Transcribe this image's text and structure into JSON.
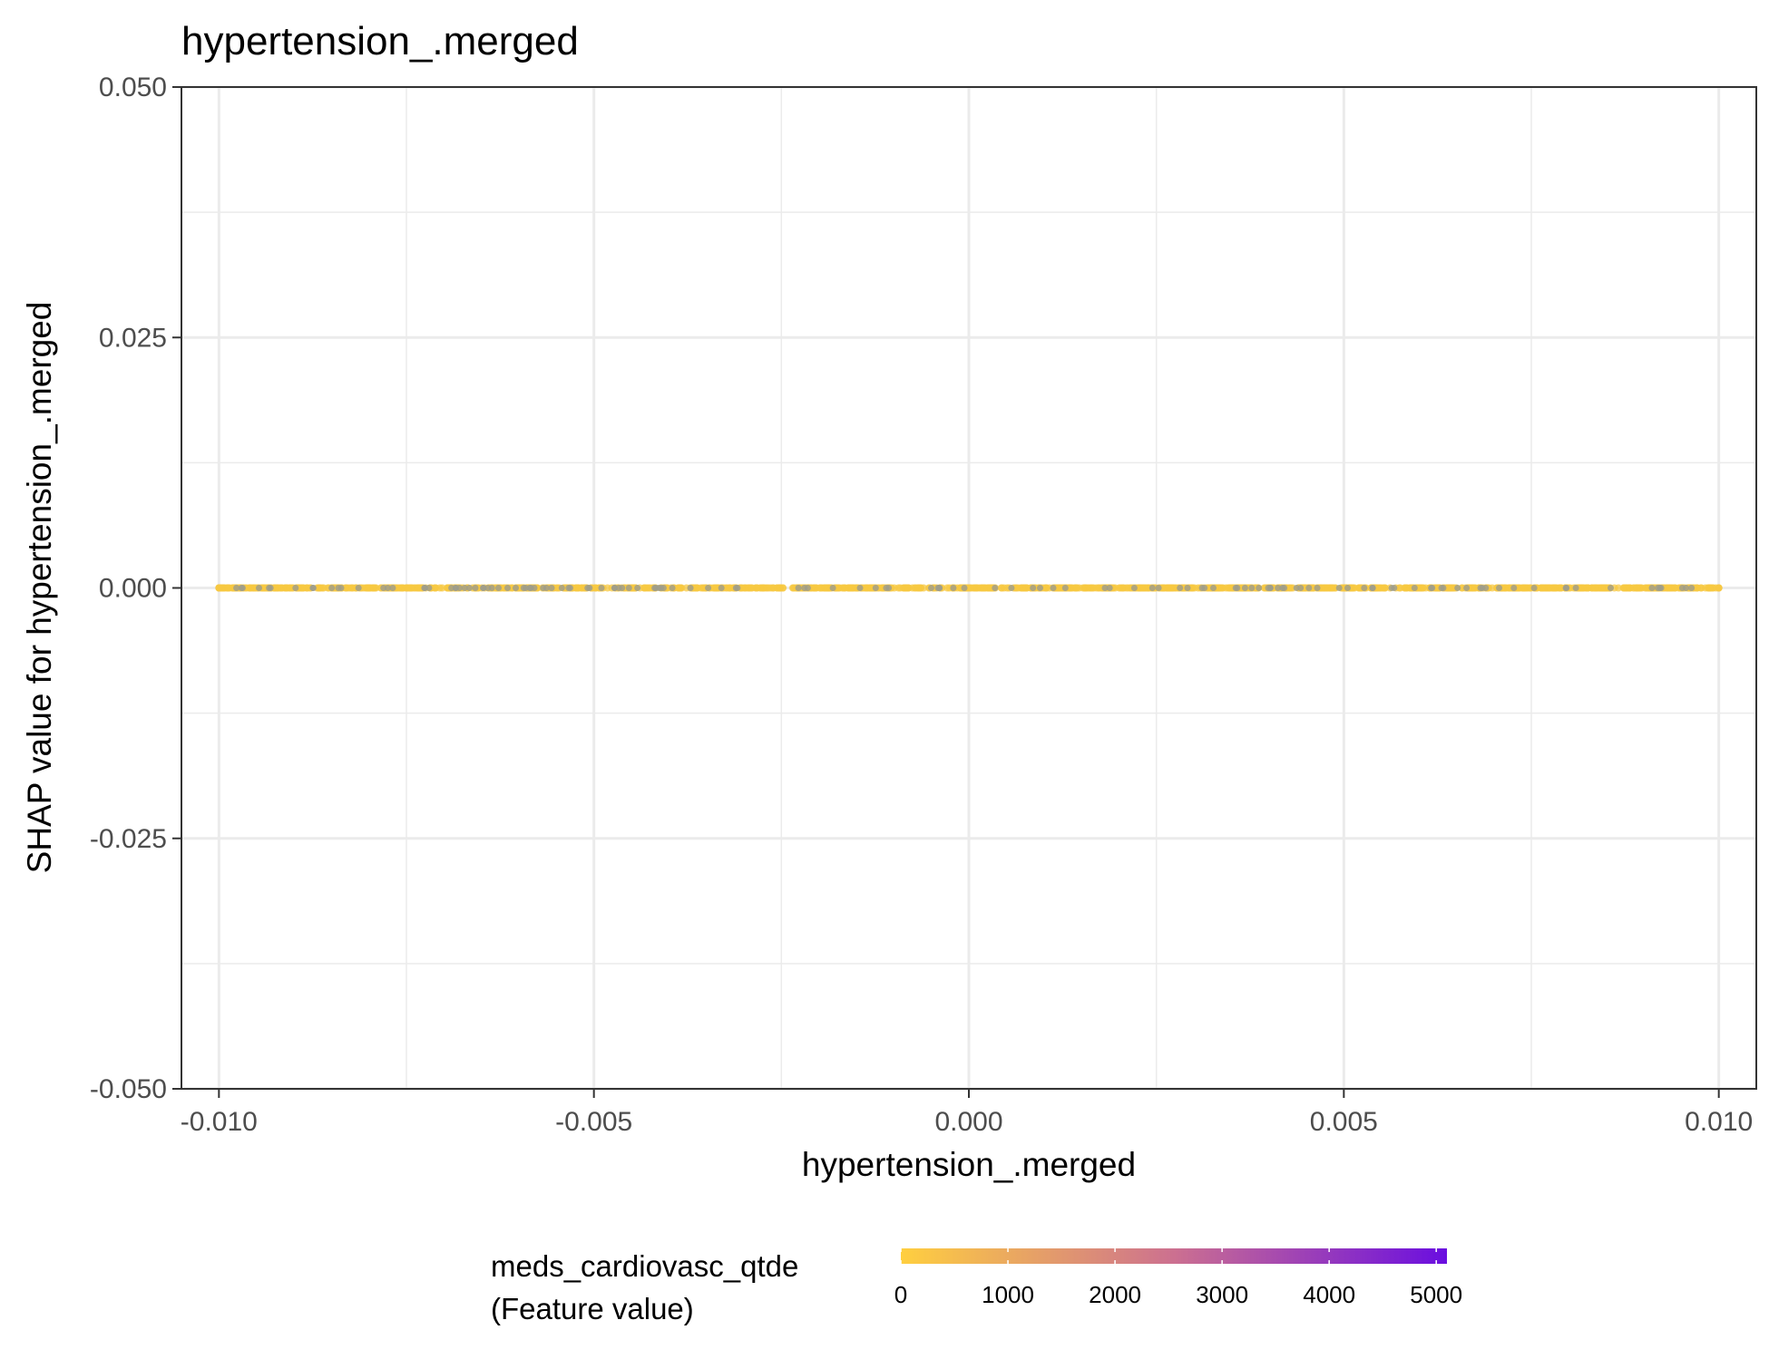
{
  "chart_data": {
    "type": "scatter",
    "title": "hypertension_.merged",
    "xlabel": "hypertension_.merged",
    "ylabel": "SHAP value for hypertension_.merged",
    "xlim": [
      -0.0105,
      0.0105
    ],
    "ylim": [
      -0.05,
      0.05
    ],
    "x_ticks": [
      -0.01,
      -0.005,
      0.0,
      0.005,
      0.01
    ],
    "x_tick_labels": [
      "-0.010",
      "-0.005",
      "0.000",
      "0.005",
      "0.010"
    ],
    "y_ticks": [
      -0.05,
      -0.025,
      0.0,
      0.025,
      0.05
    ],
    "y_tick_labels": [
      "-0.050",
      "-0.025",
      "0.000",
      "0.025",
      "0.050"
    ],
    "grid": true,
    "points": {
      "x_range": [
        -0.01,
        0.01
      ],
      "y_value": 0.0,
      "description_color_main": "#f7c842",
      "description_color_alt": "#9c9c8c"
    },
    "colorbar": {
      "title_line1": "meds_cardiovasc_qtde",
      "title_line2": "(Feature value)",
      "range": [
        0,
        5100
      ],
      "ticks": [
        0,
        1000,
        2000,
        3000,
        4000,
        5000
      ],
      "tick_labels": [
        "0",
        "1000",
        "2000",
        "3000",
        "4000",
        "5000"
      ],
      "color_low": "#ffcf3f",
      "color_mid": "#cc7090",
      "color_high": "#6a0ee0",
      "placement": "bottom"
    }
  }
}
